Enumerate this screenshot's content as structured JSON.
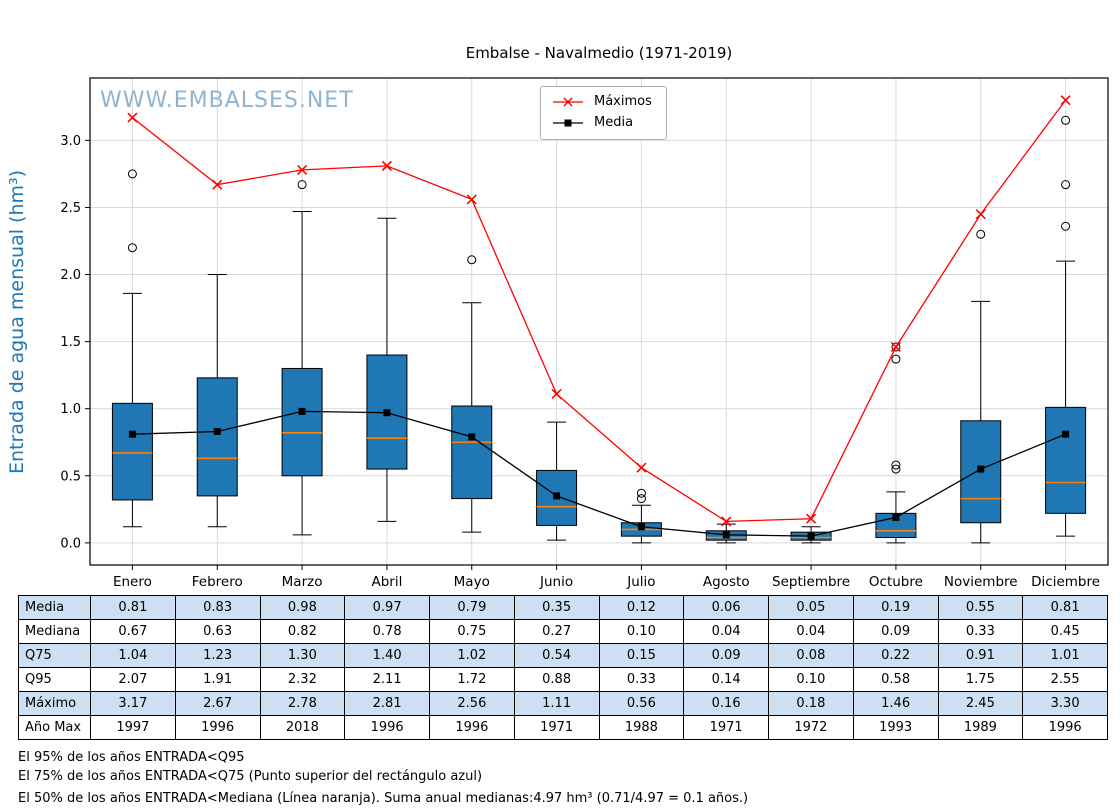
{
  "title": "Embalse - Navalmedio (1971-2019)",
  "watermark": "WWW.EMBALSES.NET",
  "ylabel": "Entrada de agua mensual (hm³)",
  "legend": {
    "maximos": "Máximos",
    "media": "Media"
  },
  "colors": {
    "box_fill": "#1f77b4",
    "median_line": "#ff7f0e",
    "maximos_line": "#ff0000",
    "media_line": "#000000",
    "watermark": "#8fb4d2",
    "ylabel": "#1f77b4",
    "table_shade": "#cddff2",
    "grid": "#d9d9d9"
  },
  "chart_data": {
    "type": "boxplot",
    "title": "Embalse - Navalmedio (1971-2019)",
    "ylabel": "Entrada de agua mensual (hm³)",
    "categories": [
      "Enero",
      "Febrero",
      "Marzo",
      "Abril",
      "Mayo",
      "Junio",
      "Julio",
      "Agosto",
      "Septiembre",
      "Octubre",
      "Noviembre",
      "Diciembre"
    ],
    "yticks": [
      0.0,
      0.5,
      1.0,
      1.5,
      2.0,
      2.5,
      3.0
    ],
    "ylim": [
      -0.165,
      3.465
    ],
    "grid": true,
    "legend_position": "top-center",
    "series": [
      {
        "name": "Máximos",
        "marker": "x",
        "color": "#ff0000",
        "values": [
          3.17,
          2.67,
          2.78,
          2.81,
          2.56,
          1.11,
          0.56,
          0.16,
          0.18,
          1.46,
          2.45,
          3.3
        ]
      },
      {
        "name": "Media",
        "marker": "square",
        "color": "#000000",
        "values": [
          0.81,
          0.83,
          0.98,
          0.97,
          0.79,
          0.35,
          0.12,
          0.06,
          0.05,
          0.19,
          0.55,
          0.81
        ]
      }
    ],
    "boxes": [
      {
        "month": "Enero",
        "q1": 0.32,
        "median": 0.67,
        "q3": 1.04,
        "whisker_low": 0.12,
        "whisker_high": 1.86,
        "outliers": [
          2.2,
          2.75
        ]
      },
      {
        "month": "Febrero",
        "q1": 0.35,
        "median": 0.63,
        "q3": 1.23,
        "whisker_low": 0.12,
        "whisker_high": 2.0,
        "outliers": []
      },
      {
        "month": "Marzo",
        "q1": 0.5,
        "median": 0.82,
        "q3": 1.3,
        "whisker_low": 0.06,
        "whisker_high": 2.47,
        "outliers": [
          2.67
        ]
      },
      {
        "month": "Abril",
        "q1": 0.55,
        "median": 0.78,
        "q3": 1.4,
        "whisker_low": 0.16,
        "whisker_high": 2.42,
        "outliers": []
      },
      {
        "month": "Mayo",
        "q1": 0.33,
        "median": 0.75,
        "q3": 1.02,
        "whisker_low": 0.08,
        "whisker_high": 1.79,
        "outliers": [
          2.11
        ]
      },
      {
        "month": "Junio",
        "q1": 0.13,
        "median": 0.27,
        "q3": 0.54,
        "whisker_low": 0.02,
        "whisker_high": 0.9,
        "outliers": []
      },
      {
        "month": "Julio",
        "q1": 0.05,
        "median": 0.1,
        "q3": 0.15,
        "whisker_low": 0.0,
        "whisker_high": 0.28,
        "outliers": [
          0.33,
          0.37
        ]
      },
      {
        "month": "Agosto",
        "q1": 0.02,
        "median": 0.04,
        "q3": 0.09,
        "whisker_low": 0.0,
        "whisker_high": 0.14,
        "outliers": []
      },
      {
        "month": "Septiembre",
        "q1": 0.02,
        "median": 0.04,
        "q3": 0.08,
        "whisker_low": 0.0,
        "whisker_high": 0.12,
        "outliers": []
      },
      {
        "month": "Octubre",
        "q1": 0.04,
        "median": 0.09,
        "q3": 0.22,
        "whisker_low": 0.0,
        "whisker_high": 0.38,
        "outliers": [
          0.55,
          0.58,
          1.37,
          1.46
        ]
      },
      {
        "month": "Noviembre",
        "q1": 0.15,
        "median": 0.33,
        "q3": 0.91,
        "whisker_low": 0.0,
        "whisker_high": 1.8,
        "outliers": [
          2.3
        ]
      },
      {
        "month": "Diciembre",
        "q1": 0.22,
        "median": 0.45,
        "q3": 1.01,
        "whisker_low": 0.05,
        "whisker_high": 2.1,
        "outliers": [
          2.36,
          2.67,
          3.15
        ]
      }
    ]
  },
  "table": {
    "rows": [
      {
        "label": "Media",
        "shaded": true,
        "values": [
          "0.81",
          "0.83",
          "0.98",
          "0.97",
          "0.79",
          "0.35",
          "0.12",
          "0.06",
          "0.05",
          "0.19",
          "0.55",
          "0.81"
        ]
      },
      {
        "label": "Mediana",
        "shaded": false,
        "values": [
          "0.67",
          "0.63",
          "0.82",
          "0.78",
          "0.75",
          "0.27",
          "0.10",
          "0.04",
          "0.04",
          "0.09",
          "0.33",
          "0.45"
        ]
      },
      {
        "label": "Q75",
        "shaded": true,
        "values": [
          "1.04",
          "1.23",
          "1.30",
          "1.40",
          "1.02",
          "0.54",
          "0.15",
          "0.09",
          "0.08",
          "0.22",
          "0.91",
          "1.01"
        ]
      },
      {
        "label": "Q95",
        "shaded": false,
        "values": [
          "2.07",
          "1.91",
          "2.32",
          "2.11",
          "1.72",
          "0.88",
          "0.33",
          "0.14",
          "0.10",
          "0.58",
          "1.75",
          "2.55"
        ]
      },
      {
        "label": "Máximo",
        "shaded": true,
        "values": [
          "3.17",
          "2.67",
          "2.78",
          "2.81",
          "2.56",
          "1.11",
          "0.56",
          "0.16",
          "0.18",
          "1.46",
          "2.45",
          "3.30"
        ]
      },
      {
        "label": "Año Max",
        "shaded": false,
        "values": [
          "1997",
          "1996",
          "2018",
          "1996",
          "1996",
          "1971",
          "1988",
          "1971",
          "1972",
          "1993",
          "1989",
          "1996"
        ]
      }
    ]
  },
  "footnotes": [
    "El 95% de los años ENTRADA<Q95",
    "El 75% de los años ENTRADA<Q75 (Punto superior del rectángulo azul)",
    "El 50% de los años ENTRADA<Mediana (Línea naranja). Suma anual medianas:4.97 hm³ (0.71/4.97 = 0.1 años.)"
  ]
}
